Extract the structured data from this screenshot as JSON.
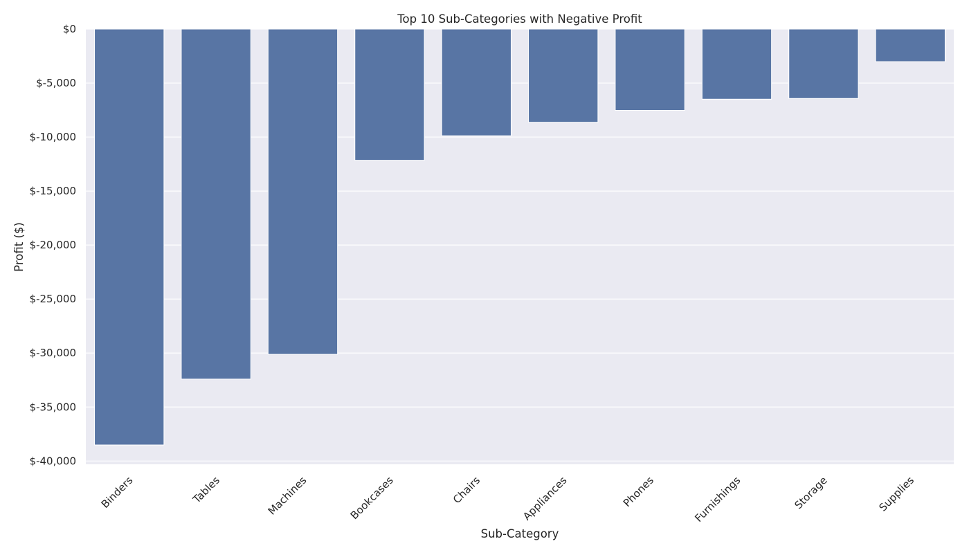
{
  "chart_data": {
    "type": "bar",
    "title": "Top 10 Sub-Categories with Negative Profit",
    "xlabel": "Sub-Category",
    "ylabel": "Profit ($)",
    "categories": [
      "Binders",
      "Tables",
      "Machines",
      "Bookcases",
      "Chairs",
      "Appliances",
      "Phones",
      "Furnishings",
      "Storage",
      "Supplies"
    ],
    "values": [
      -38510,
      -32412,
      -30119,
      -12152,
      -9880,
      -8630,
      -7530,
      -6490,
      -6426,
      -3015
    ],
    "ylim": [
      -40300,
      0
    ],
    "yticks": [
      0,
      -5000,
      -10000,
      -15000,
      -20000,
      -25000,
      -30000,
      -35000,
      -40000
    ],
    "ytick_labels": [
      "$0",
      "$-5,000",
      "$-10,000",
      "$-15,000",
      "$-20,000",
      "$-25,000",
      "$-30,000",
      "$-35,000",
      "$-40,000"
    ],
    "grid": true,
    "colors": {
      "bar": "#5875a4",
      "plot_background": "#eaeaf2",
      "grid": "#ffffff",
      "text": "#262626"
    }
  }
}
